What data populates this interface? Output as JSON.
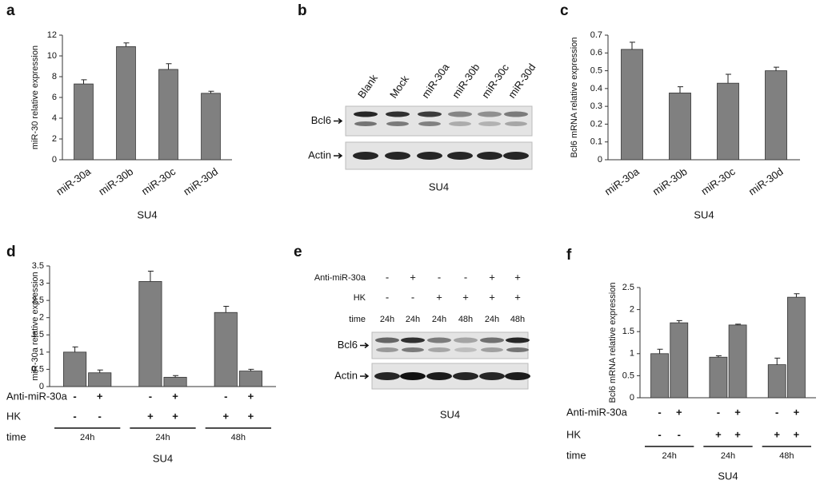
{
  "chart_data": [
    {
      "type": "bar",
      "panel": "a",
      "categories": [
        "miR-30a",
        "miR-30b",
        "miR-30c",
        "miR-30d"
      ],
      "values": [
        7.3,
        10.9,
        8.7,
        6.4
      ],
      "errors": [
        0.4,
        0.35,
        0.55,
        0.2
      ],
      "color": "#808080",
      "ylim": [
        0,
        12
      ],
      "yticks": [
        0,
        2,
        4,
        6,
        8,
        10,
        12
      ],
      "ylabel": "miR-30 relative expression",
      "xlabel": "SU4"
    },
    {
      "type": "bar",
      "panel": "c",
      "categories": [
        "miR-30a",
        "miR-30b",
        "miR-30c",
        "miR-30d"
      ],
      "values": [
        0.62,
        0.375,
        0.43,
        0.5
      ],
      "errors": [
        0.04,
        0.035,
        0.05,
        0.02
      ],
      "color": "#808080",
      "ylim": [
        0,
        0.7
      ],
      "yticks": [
        0,
        0.1,
        0.2,
        0.3,
        0.4,
        0.5,
        0.6,
        0.7
      ],
      "ylabel": "Bcl6 mRNA relative expression",
      "xlabel": "SU4"
    },
    {
      "type": "bar",
      "panel": "d",
      "values": [
        1.0,
        0.4,
        3.05,
        0.27,
        2.15,
        0.45
      ],
      "errors": [
        0.15,
        0.08,
        0.3,
        0.05,
        0.18,
        0.05
      ],
      "color": "#808080",
      "ylim": [
        0,
        3.5
      ],
      "yticks": [
        0,
        0.5,
        1,
        1.5,
        2,
        2.5,
        3,
        3.5
      ],
      "ylabel": "miR-30a relative expression",
      "xlabel": "SU4",
      "conditions": [
        {
          "label": "Anti-miR-30a",
          "values": [
            "-",
            "+",
            "-",
            "+",
            "-",
            "+"
          ]
        },
        {
          "label": "HK",
          "values": [
            "-",
            "-",
            "+",
            "+",
            "+",
            "+"
          ]
        }
      ],
      "groups": {
        "label": "time",
        "values": [
          "24h",
          "24h",
          "48h"
        ]
      }
    },
    {
      "type": "bar",
      "panel": "f",
      "values": [
        1.0,
        1.7,
        0.92,
        1.65,
        0.75,
        2.28
      ],
      "errors": [
        0.1,
        0.05,
        0.03,
        0.02,
        0.15,
        0.08
      ],
      "color": "#808080",
      "ylim": [
        0,
        2.5
      ],
      "yticks": [
        0,
        0.5,
        1,
        1.5,
        2,
        2.5
      ],
      "ylabel": "Bcl6 mRNA relative expression",
      "xlabel": "SU4",
      "conditions": [
        {
          "label": "Anti-miR-30a",
          "values": [
            "-",
            "+",
            "-",
            "+",
            "-",
            "+"
          ]
        },
        {
          "label": "HK",
          "values": [
            "-",
            "-",
            "+",
            "+",
            "+",
            "+"
          ]
        }
      ],
      "groups": {
        "label": "time",
        "values": [
          "24h",
          "24h",
          "48h"
        ]
      }
    }
  ],
  "blots": [
    {
      "panel": "b",
      "lanes": [
        "Blank",
        "Mock",
        "miR-30a",
        "miR-30b",
        "miR-30c",
        "miR-30d"
      ],
      "rows": [
        "Bcl6",
        "Actin"
      ],
      "caption": "SU4"
    },
    {
      "panel": "e",
      "conditions": [
        {
          "label": "Anti-miR-30a",
          "values": [
            "-",
            "+",
            "-",
            "-",
            "+",
            "+"
          ]
        },
        {
          "label": "HK",
          "values": [
            "-",
            "-",
            "+",
            "+",
            "+",
            "+"
          ]
        },
        {
          "label": "time",
          "values": [
            "24h",
            "24h",
            "24h",
            "48h",
            "24h",
            "48h"
          ]
        }
      ],
      "rows": [
        "Bcl6",
        "Actin"
      ],
      "caption": "SU4"
    }
  ]
}
